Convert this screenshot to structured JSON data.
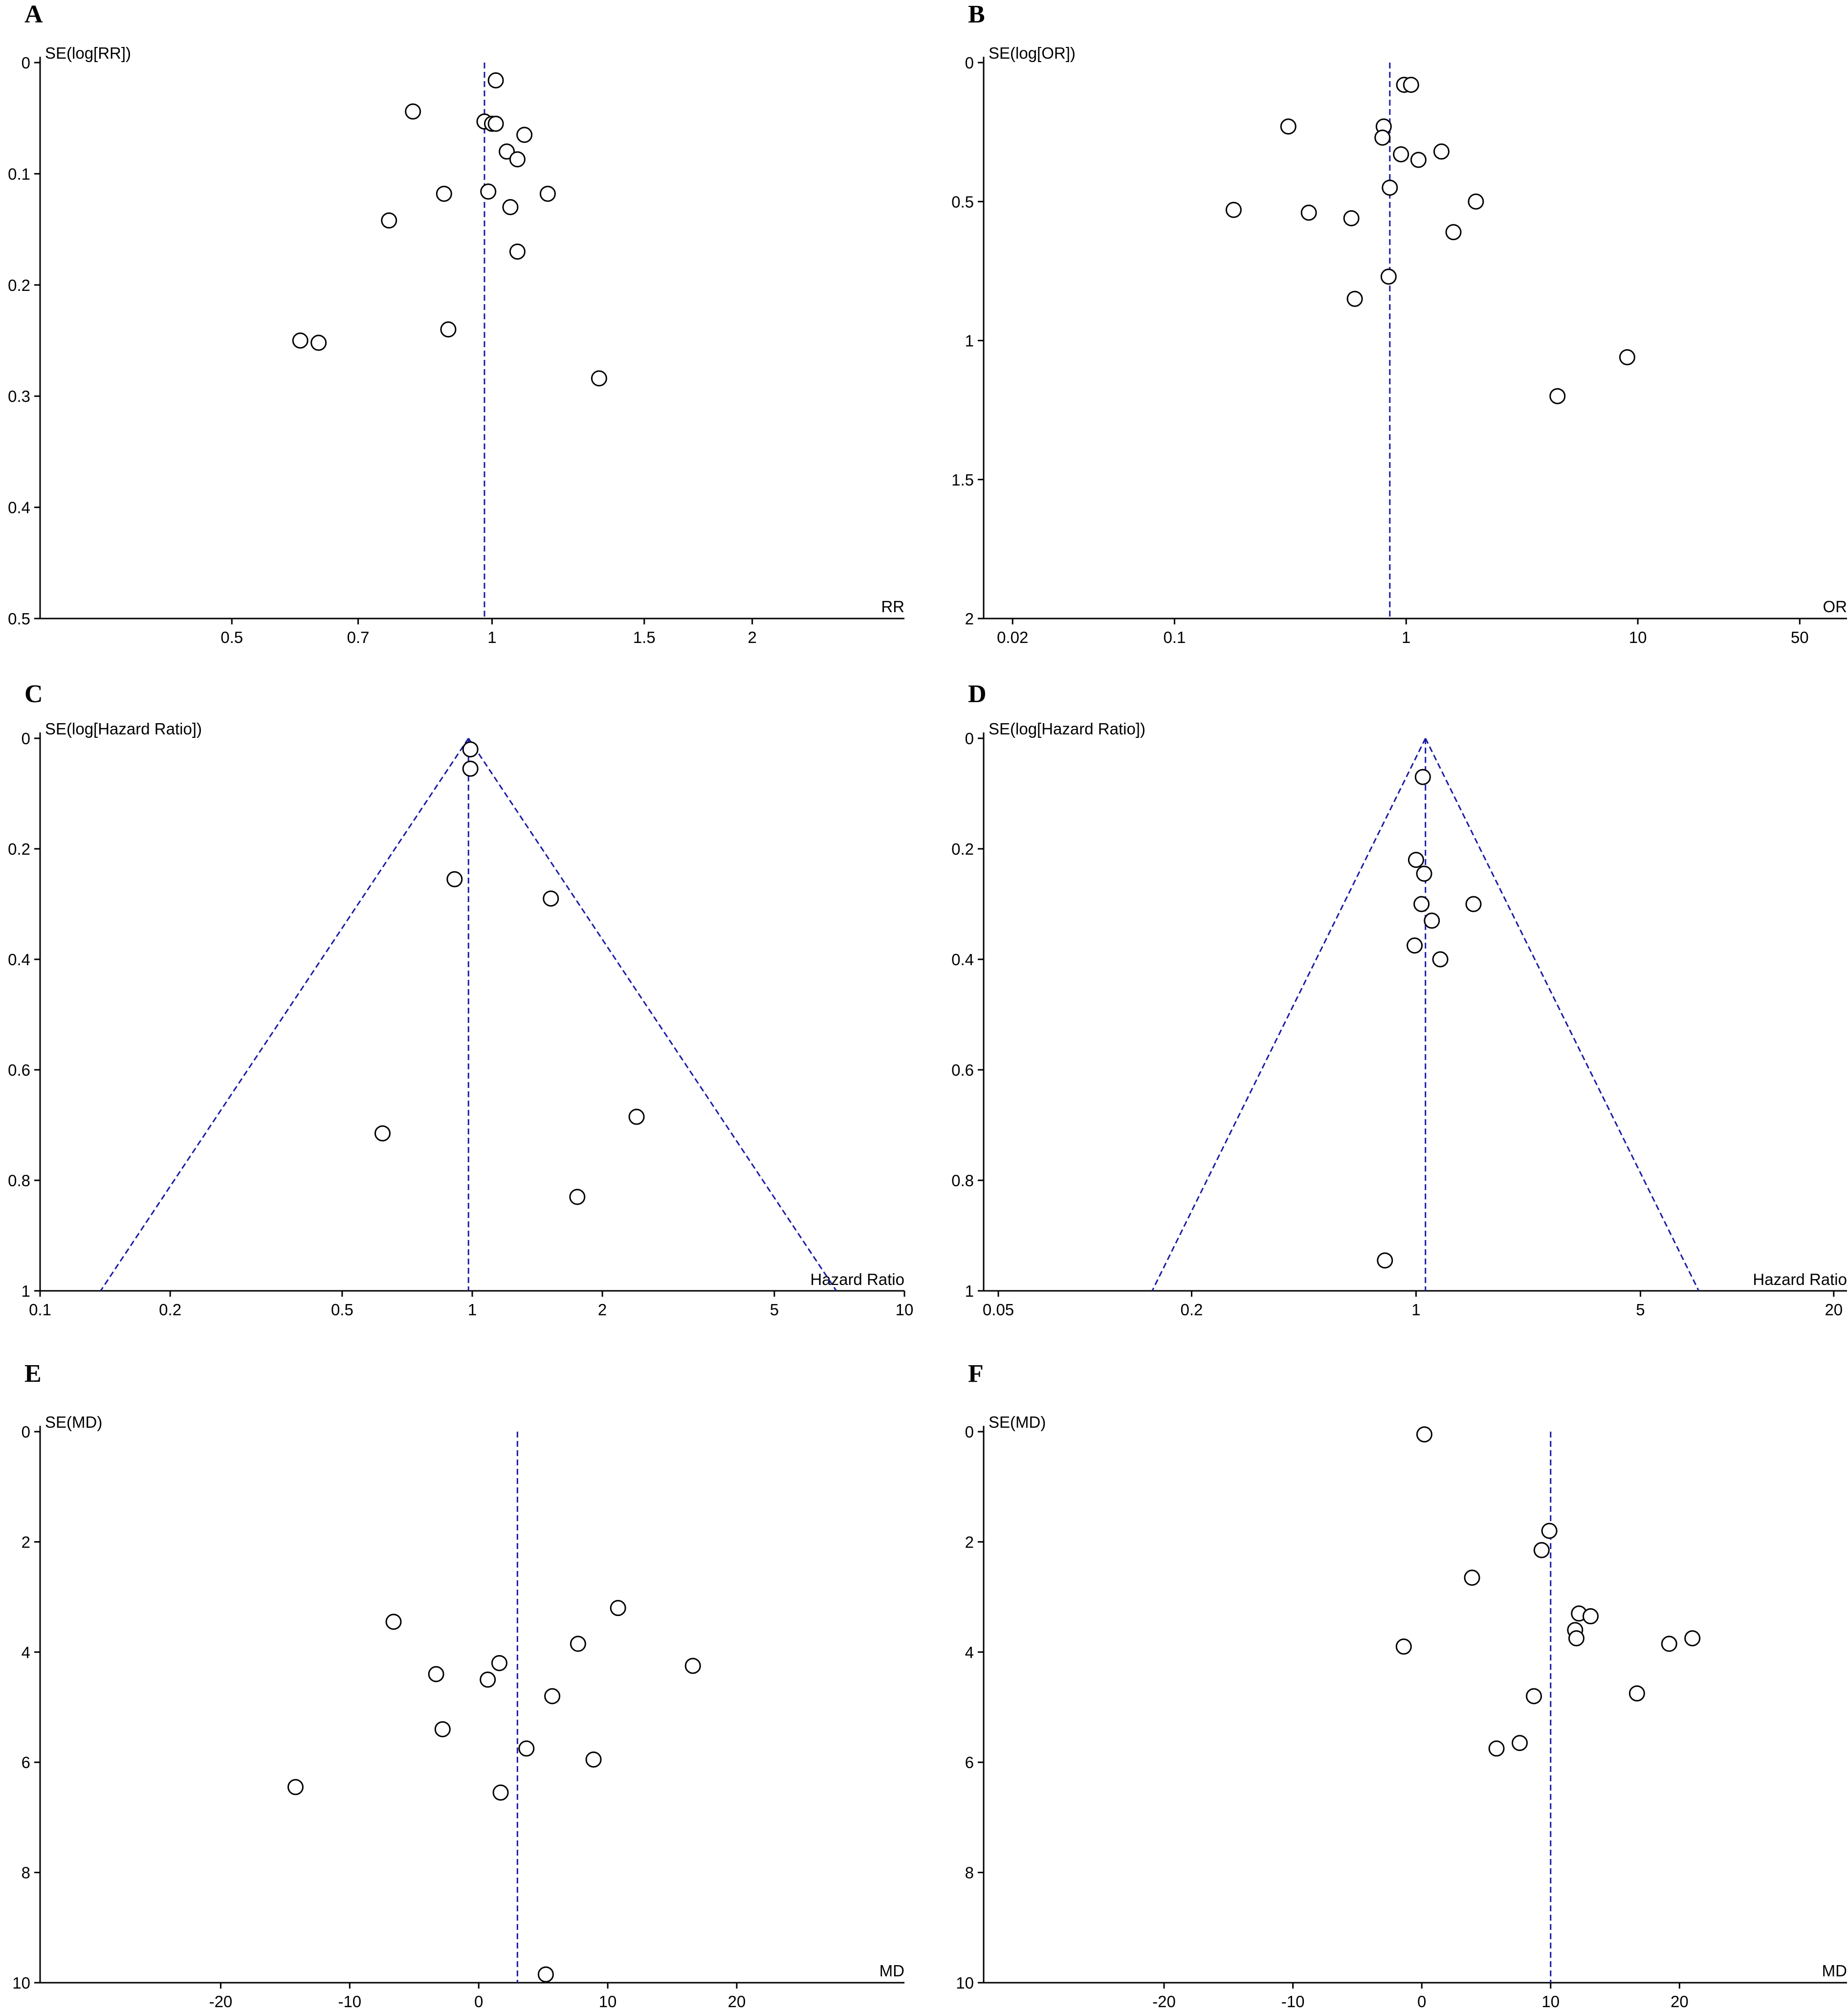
{
  "colors": {
    "axis": "#000000",
    "reference_line": "#1a1aa6",
    "marker_edge": "#000000",
    "marker_fill": "#ffffff"
  },
  "chart_data": [
    {
      "panel": "A",
      "type": "scatter",
      "subtype": "funnel",
      "xlabel": "RR",
      "ylabel": "SE(log[RR])",
      "xscale": "log",
      "xlim": [
        0.3,
        3.0
      ],
      "ylim": [
        0,
        0.5
      ],
      "y_inverted": true,
      "xticks": [
        0.5,
        0.7,
        1,
        1.5,
        2
      ],
      "xtick_labels": [
        "0.5",
        "0.7",
        "1",
        "1.5",
        "2"
      ],
      "yticks": [
        0,
        0.1,
        0.2,
        0.3,
        0.4,
        0.5
      ],
      "ytick_labels": [
        "0",
        "0.1",
        "0.2",
        "0.3",
        "0.4",
        "0.5"
      ],
      "pooled_estimate": 0.98,
      "funnel_limits": false,
      "points": [
        {
          "x": 1.01,
          "y": 0.016
        },
        {
          "x": 0.81,
          "y": 0.044
        },
        {
          "x": 0.98,
          "y": 0.053
        },
        {
          "x": 1.0,
          "y": 0.055
        },
        {
          "x": 1.01,
          "y": 0.055
        },
        {
          "x": 1.09,
          "y": 0.065
        },
        {
          "x": 1.04,
          "y": 0.08
        },
        {
          "x": 1.07,
          "y": 0.087
        },
        {
          "x": 0.88,
          "y": 0.118
        },
        {
          "x": 0.99,
          "y": 0.116
        },
        {
          "x": 1.16,
          "y": 0.118
        },
        {
          "x": 1.05,
          "y": 0.13
        },
        {
          "x": 0.76,
          "y": 0.142
        },
        {
          "x": 1.07,
          "y": 0.17
        },
        {
          "x": 0.89,
          "y": 0.24
        },
        {
          "x": 0.6,
          "y": 0.25
        },
        {
          "x": 0.63,
          "y": 0.252
        },
        {
          "x": 1.33,
          "y": 0.284
        }
      ]
    },
    {
      "panel": "B",
      "type": "scatter",
      "subtype": "funnel",
      "xlabel": "OR",
      "ylabel": "SE(log[OR])",
      "xscale": "log",
      "xlim": [
        0.015,
        80
      ],
      "ylim": [
        0,
        2
      ],
      "y_inverted": true,
      "xticks": [
        0.02,
        0.1,
        1,
        10,
        50
      ],
      "xtick_labels": [
        "0.02",
        "0.1",
        "1",
        "10",
        "50"
      ],
      "yticks": [
        0,
        0.5,
        1,
        1.5,
        2
      ],
      "ytick_labels": [
        "0",
        "0.5",
        "1",
        "1.5",
        "2"
      ],
      "pooled_estimate": 0.85,
      "funnel_limits": false,
      "points": [
        {
          "x": 0.98,
          "y": 0.08
        },
        {
          "x": 1.05,
          "y": 0.08
        },
        {
          "x": 0.31,
          "y": 0.23
        },
        {
          "x": 0.8,
          "y": 0.23
        },
        {
          "x": 0.79,
          "y": 0.27
        },
        {
          "x": 0.95,
          "y": 0.33
        },
        {
          "x": 1.42,
          "y": 0.32
        },
        {
          "x": 1.13,
          "y": 0.35
        },
        {
          "x": 0.85,
          "y": 0.45
        },
        {
          "x": 2.0,
          "y": 0.5
        },
        {
          "x": 0.18,
          "y": 0.53
        },
        {
          "x": 0.38,
          "y": 0.54
        },
        {
          "x": 0.58,
          "y": 0.56
        },
        {
          "x": 1.6,
          "y": 0.61
        },
        {
          "x": 0.84,
          "y": 0.77
        },
        {
          "x": 0.6,
          "y": 0.85
        },
        {
          "x": 9.0,
          "y": 1.06
        },
        {
          "x": 4.5,
          "y": 1.2
        }
      ]
    },
    {
      "panel": "C",
      "type": "scatter",
      "subtype": "funnel",
      "xlabel": "Hazard Ratio",
      "ylabel": "SE(log[Hazard Ratio])",
      "xscale": "log",
      "xlim": [
        0.1,
        10
      ],
      "ylim": [
        0,
        1
      ],
      "y_inverted": true,
      "xticks": [
        0.1,
        0.2,
        0.5,
        1,
        2,
        5,
        10
      ],
      "xtick_labels": [
        "0.1",
        "0.2",
        "0.5",
        "1",
        "2",
        "5",
        "10"
      ],
      "yticks": [
        0,
        0.2,
        0.4,
        0.6,
        0.8,
        1
      ],
      "ytick_labels": [
        "0",
        "0.2",
        "0.4",
        "0.6",
        "0.8",
        "1"
      ],
      "pooled_estimate": 0.98,
      "funnel_limits": true,
      "points": [
        {
          "x": 0.99,
          "y": 0.02
        },
        {
          "x": 0.99,
          "y": 0.055
        },
        {
          "x": 0.91,
          "y": 0.255
        },
        {
          "x": 1.52,
          "y": 0.29
        },
        {
          "x": 0.62,
          "y": 0.715
        },
        {
          "x": 2.4,
          "y": 0.685
        },
        {
          "x": 1.75,
          "y": 0.83
        }
      ]
    },
    {
      "panel": "D",
      "type": "scatter",
      "subtype": "funnel",
      "xlabel": "Hazard Ratio",
      "ylabel": "SE(log[Hazard Ratio])",
      "xscale": "log",
      "xlim": [
        0.045,
        22
      ],
      "ylim": [
        0,
        1
      ],
      "y_inverted": true,
      "xticks": [
        0.05,
        0.2,
        1,
        5,
        20
      ],
      "xtick_labels": [
        "0.05",
        "0.2",
        "1",
        "5",
        "20"
      ],
      "yticks": [
        0,
        0.2,
        0.4,
        0.6,
        0.8,
        1
      ],
      "ytick_labels": [
        "0",
        "0.2",
        "0.4",
        "0.6",
        "0.8",
        "1"
      ],
      "pooled_estimate": 1.07,
      "funnel_limits": true,
      "points": [
        {
          "x": 1.05,
          "y": 0.07
        },
        {
          "x": 1.0,
          "y": 0.22
        },
        {
          "x": 1.06,
          "y": 0.245
        },
        {
          "x": 1.04,
          "y": 0.3
        },
        {
          "x": 1.51,
          "y": 0.3
        },
        {
          "x": 1.12,
          "y": 0.33
        },
        {
          "x": 0.99,
          "y": 0.375
        },
        {
          "x": 1.19,
          "y": 0.4
        },
        {
          "x": 0.8,
          "y": 0.945
        }
      ]
    },
    {
      "panel": "E",
      "type": "scatter",
      "subtype": "funnel",
      "xlabel": "MD",
      "ylabel": "SE(MD)",
      "xscale": "linear",
      "xlim": [
        -34,
        33
      ],
      "ylim": [
        0,
        10
      ],
      "y_inverted": true,
      "xticks": [
        -20,
        -10,
        0,
        10,
        20
      ],
      "xtick_labels": [
        "-20",
        "-10",
        "0",
        "10",
        "20"
      ],
      "yticks": [
        0,
        2,
        4,
        6,
        8,
        10
      ],
      "ytick_labels": [
        "0",
        "2",
        "4",
        "6",
        "8",
        "10"
      ],
      "pooled_estimate": 3.0,
      "funnel_limits": false,
      "points": [
        {
          "x": 10.8,
          "y": 3.2
        },
        {
          "x": -6.6,
          "y": 3.45
        },
        {
          "x": 7.7,
          "y": 3.85
        },
        {
          "x": 1.6,
          "y": 4.2
        },
        {
          "x": 16.6,
          "y": 4.25
        },
        {
          "x": -3.3,
          "y": 4.4
        },
        {
          "x": 0.7,
          "y": 4.5
        },
        {
          "x": 5.7,
          "y": 4.8
        },
        {
          "x": -2.8,
          "y": 5.4
        },
        {
          "x": 3.7,
          "y": 5.75
        },
        {
          "x": 8.9,
          "y": 5.95
        },
        {
          "x": -14.2,
          "y": 6.45
        },
        {
          "x": 1.7,
          "y": 6.55
        },
        {
          "x": 5.2,
          "y": 9.85
        }
      ]
    },
    {
      "panel": "F",
      "type": "scatter",
      "subtype": "funnel",
      "xlabel": "MD",
      "ylabel": "SE(MD)",
      "xscale": "linear",
      "xlim": [
        -34,
        33
      ],
      "ylim": [
        0,
        10
      ],
      "y_inverted": true,
      "xticks": [
        -20,
        -10,
        0,
        10,
        20
      ],
      "xtick_labels": [
        "-20",
        "-10",
        "0",
        "10",
        "20"
      ],
      "yticks": [
        0,
        2,
        4,
        6,
        8,
        10
      ],
      "ytick_labels": [
        "0",
        "2",
        "4",
        "6",
        "8",
        "10"
      ],
      "pooled_estimate": 10.0,
      "funnel_limits": false,
      "points": [
        {
          "x": 0.2,
          "y": 0.05
        },
        {
          "x": 9.9,
          "y": 1.8
        },
        {
          "x": 9.3,
          "y": 2.15
        },
        {
          "x": 3.9,
          "y": 2.65
        },
        {
          "x": 12.2,
          "y": 3.3
        },
        {
          "x": 13.1,
          "y": 3.35
        },
        {
          "x": 11.9,
          "y": 3.6
        },
        {
          "x": 12.0,
          "y": 3.75
        },
        {
          "x": 21.0,
          "y": 3.75
        },
        {
          "x": 19.2,
          "y": 3.85
        },
        {
          "x": -1.4,
          "y": 3.9
        },
        {
          "x": 16.7,
          "y": 4.75
        },
        {
          "x": 8.7,
          "y": 4.8
        },
        {
          "x": 7.6,
          "y": 5.65
        },
        {
          "x": 5.8,
          "y": 5.75
        }
      ]
    }
  ]
}
